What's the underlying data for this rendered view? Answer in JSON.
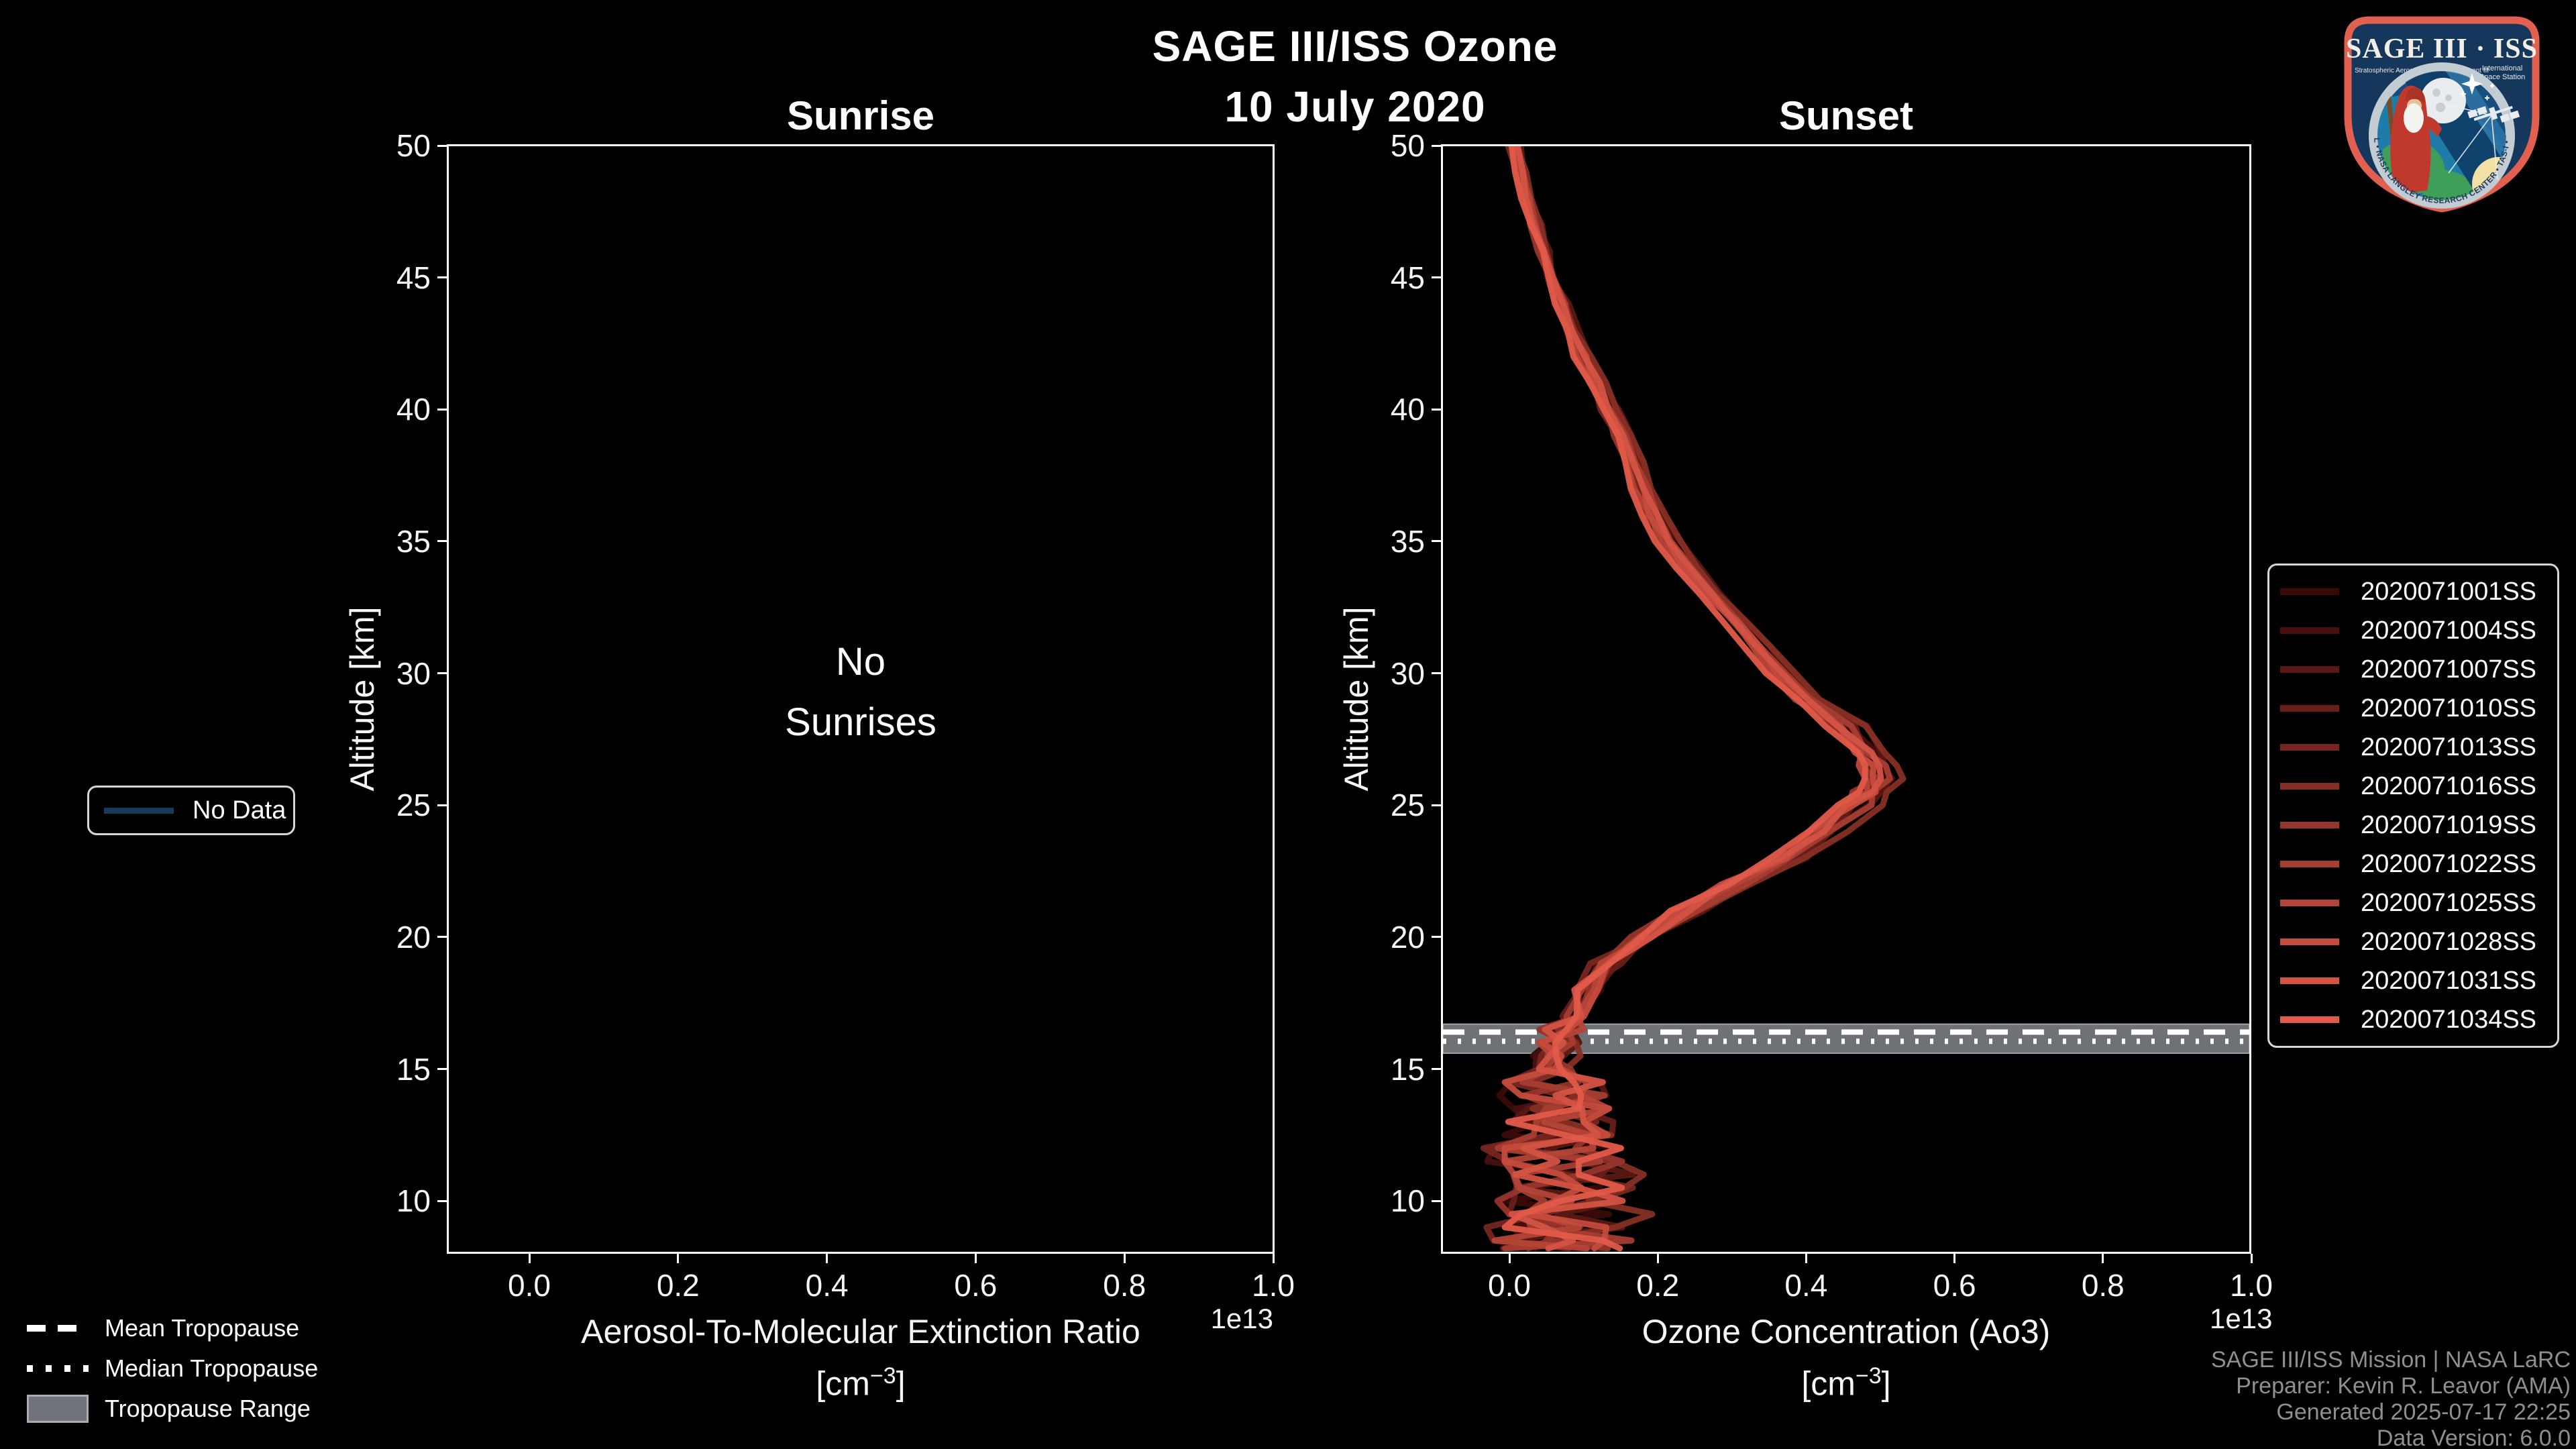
{
  "header": {
    "title": "SAGE III/ISS Ozone",
    "date": "10 July 2020"
  },
  "logo": {
    "title": "SAGE III · ISS",
    "subtitle_left": "Stratospheric Aerosol and Gas Experiment III",
    "intl_line1": "International",
    "intl_line2": "Space Station",
    "ring_text": "BALL • NASA LANGLEY RESEARCH CENTER • TAS-I • ESA"
  },
  "sunrise": {
    "title": "Sunrise",
    "ylabel": "Altitude [km]",
    "xlabel": "Aerosol-To-Molecular Extinction Ratio",
    "unit_prefix": "[cm",
    "unit_exp": "−3",
    "unit_suffix": "]",
    "offset": "1e13",
    "empty_line1": "No",
    "empty_line2": "Sunrises",
    "legend_label": "No Data",
    "yticks": [
      "50",
      "45",
      "40",
      "35",
      "30",
      "25",
      "20",
      "15",
      "10"
    ],
    "xticks": [
      "0.0",
      "0.2",
      "0.4",
      "0.6",
      "0.8",
      "1.0"
    ]
  },
  "sunset": {
    "title": "Sunset",
    "ylabel": "Altitude [km]",
    "xlabel": "Ozone Concentration (Ao3)",
    "unit_prefix": "[cm",
    "unit_exp": "−3",
    "unit_suffix": "]",
    "offset": "1e13",
    "yticks": [
      "50",
      "45",
      "40",
      "35",
      "30",
      "25",
      "20",
      "15",
      "10"
    ],
    "xticks": [
      "0.0",
      "0.2",
      "0.4",
      "0.6",
      "0.8",
      "1.0"
    ]
  },
  "tropopause_legend": {
    "mean": "Mean Tropopause",
    "median": "Median Tropopause",
    "range": "Tropopause Range"
  },
  "credits": {
    "line1": "SAGE III/ISS Mission | NASA LaRC",
    "line2": "Preparer: Kevin R. Leavor (AMA)",
    "line3": "Generated 2025-07-17 22:25",
    "line4": "Data Version: 6.0.0"
  },
  "colors": {
    "no_data_line": "#1a3a5c",
    "tropopause_band": "#6e7276",
    "spine": "#ffffff",
    "credits_text": "#8f8f8f",
    "series": [
      "#3a0907",
      "#491010",
      "#591813",
      "#681f19",
      "#77261f",
      "#862e25",
      "#96352b",
      "#a53d31",
      "#b44437",
      "#c44b3d",
      "#d35343",
      "#e25a49"
    ]
  },
  "chart_data": {
    "type": "line",
    "title": "SAGE III/ISS Ozone",
    "subtitle": "10 July 2020",
    "panels": [
      {
        "name": "Sunrise",
        "annotation": "No Sunrises",
        "xlabel": "Aerosol-To-Molecular Extinction Ratio [cm−3]",
        "ylabel": "Altitude [km]",
        "x_offset_factor": "1e13",
        "xlim": [
          -0.09,
          1.0
        ],
        "ylim": [
          8,
          50
        ],
        "xticks": [
          0.0,
          0.2,
          0.4,
          0.6,
          0.8,
          1.0
        ],
        "yticks": [
          10,
          15,
          20,
          25,
          30,
          35,
          40,
          45,
          50
        ],
        "series": []
      },
      {
        "name": "Sunset",
        "xlabel": "Ozone Concentration (Ao3) [cm−3]",
        "ylabel": "Altitude [km]",
        "x_offset_factor": "1e13",
        "xlim": [
          -0.09,
          1.0
        ],
        "ylim": [
          8,
          50
        ],
        "xticks": [
          0.0,
          0.2,
          0.4,
          0.6,
          0.8,
          1.0
        ],
        "yticks": [
          10,
          15,
          20,
          25,
          30,
          35,
          40,
          45,
          50
        ],
        "series_ids": [
          "2020071001SS",
          "2020071004SS",
          "2020071007SS",
          "2020071010SS",
          "2020071013SS",
          "2020071016SS",
          "2020071019SS",
          "2020071022SS",
          "2020071025SS",
          "2020071028SS",
          "2020071031SS",
          "2020071034SS"
        ],
        "series_colors": [
          "#3a0907",
          "#491010",
          "#591813",
          "#681f19",
          "#77261f",
          "#862e25",
          "#96352b",
          "#a53d31",
          "#b44437",
          "#c44b3d",
          "#d35343",
          "#e25a49"
        ],
        "base_profile_alt_km": [
          50,
          49,
          48,
          47,
          46,
          45,
          44,
          43,
          42,
          41,
          40,
          39,
          38,
          37,
          36,
          35,
          34,
          33,
          32,
          31,
          30,
          29,
          28,
          27,
          26.5,
          26,
          25.5,
          25,
          24,
          23,
          22,
          21,
          20,
          19,
          18,
          17,
          16.5,
          16,
          15.5,
          15,
          14.5,
          14,
          13.5,
          13,
          12.5,
          12,
          11.5,
          11,
          10.5,
          10,
          9.5,
          9,
          8.5,
          8.2
        ],
        "base_profile_x_1e13": [
          0.008,
          0.016,
          0.025,
          0.034,
          0.045,
          0.056,
          0.068,
          0.082,
          0.098,
          0.115,
          0.133,
          0.152,
          0.167,
          0.178,
          0.193,
          0.212,
          0.24,
          0.27,
          0.305,
          0.335,
          0.365,
          0.395,
          0.45,
          0.48,
          0.49,
          0.495,
          0.485,
          0.465,
          0.42,
          0.375,
          0.3,
          0.24,
          0.18,
          0.13,
          0.105,
          0.085,
          0.075,
          0.065,
          0.06,
          0.058,
          0.055,
          0.06,
          0.07,
          0.065,
          0.06,
          0.07,
          0.065,
          0.07,
          0.075,
          0.07,
          0.08,
          0.075,
          0.08,
          0.085
        ],
        "tropopause": {
          "mean_km": 16.4,
          "median_km": 16.05,
          "range_km": [
            15.6,
            16.7
          ]
        }
      }
    ]
  }
}
